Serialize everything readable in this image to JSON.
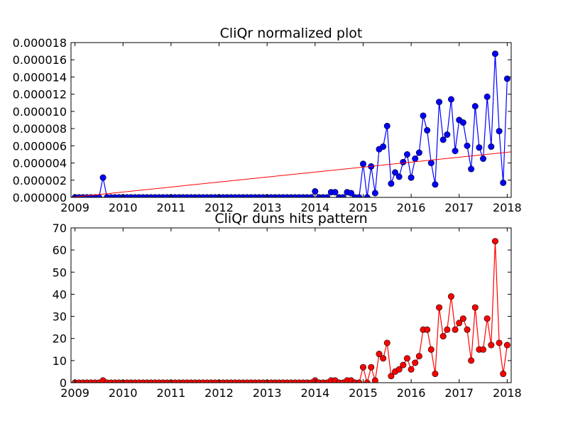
{
  "colors": {
    "normalized": "#0000ff",
    "hits": "#ff0000",
    "trend": "#ff0000"
  },
  "chart_data": [
    {
      "type": "line",
      "title": "CliQr normalized plot",
      "xlabel": "",
      "ylabel": "",
      "xlim": [
        2008.917,
        2018.083
      ],
      "ylim": [
        0,
        1.8e-05
      ],
      "x_ticks": [
        2009,
        2010,
        2011,
        2012,
        2013,
        2014,
        2015,
        2016,
        2017,
        2018
      ],
      "x_tick_labels": [
        "2009",
        "2010",
        "2011",
        "2012",
        "2013",
        "2014",
        "2015",
        "2016",
        "2017",
        "2018"
      ],
      "y_ticks": [
        0,
        2e-06,
        4e-06,
        6e-06,
        8e-06,
        1e-05,
        1.2e-05,
        1.4e-05,
        1.6e-05,
        1.8e-05
      ],
      "y_tick_labels": [
        "0.000000",
        "0.000002",
        "0.000004",
        "0.000006",
        "0.000008",
        "0.000010",
        "0.000012",
        "0.000014",
        "0.000016",
        "0.000018"
      ],
      "grid": false,
      "series": [
        {
          "marker": "circle",
          "color": "#0000ff",
          "x_start": 2009.0,
          "x_step": 0.08333,
          "values": [
            0,
            0,
            0,
            0,
            0,
            0,
            0,
            2.3e-06,
            0,
            0,
            0,
            0,
            0,
            0,
            0,
            0,
            0,
            0,
            0,
            0,
            0,
            0,
            0,
            0,
            0,
            0,
            0,
            0,
            0,
            0,
            0,
            0,
            0,
            0,
            0,
            0,
            0,
            0,
            0,
            0,
            0,
            0,
            0,
            0,
            0,
            0,
            0,
            0,
            0,
            0,
            0,
            0,
            0,
            0,
            0,
            0,
            0,
            0,
            0,
            0,
            7e-07,
            0,
            0,
            0,
            6e-07,
            6e-07,
            0,
            0,
            6e-07,
            5e-07,
            0,
            0,
            3.9e-06,
            0,
            3.6e-06,
            5e-07,
            5.6e-06,
            5.9e-06,
            8.3e-06,
            1.6e-06,
            2.9e-06,
            2.4e-06,
            4.1e-06,
            5e-06,
            2.3e-06,
            4.5e-06,
            5.2e-06,
            9.5e-06,
            7.8e-06,
            4e-06,
            1.5e-06,
            1.11e-05,
            6.7e-06,
            7.3e-06,
            1.14e-05,
            5.4e-06,
            9e-06,
            8.7e-06,
            6e-06,
            3.3e-06,
            1.06e-05,
            5.8e-06,
            4.5e-06,
            1.17e-05,
            5.9e-06,
            1.67e-05,
            7.7e-06,
            1.7e-06,
            1.38e-05
          ]
        },
        {
          "type": "trend-line",
          "color": "#ff0000",
          "x": [
            2008.917,
            2018.083
          ],
          "values": [
            0,
            5.3e-06
          ]
        }
      ]
    },
    {
      "type": "line",
      "title": "CliQr duns hits pattern",
      "xlabel": "",
      "ylabel": "",
      "xlim": [
        2008.917,
        2018.083
      ],
      "ylim": [
        0,
        70
      ],
      "x_ticks": [
        2009,
        2010,
        2011,
        2012,
        2013,
        2014,
        2015,
        2016,
        2017,
        2018
      ],
      "x_tick_labels": [
        "2009",
        "2010",
        "2011",
        "2012",
        "2013",
        "2014",
        "2015",
        "2016",
        "2017",
        "2018"
      ],
      "y_ticks": [
        0,
        10,
        20,
        30,
        40,
        50,
        60,
        70
      ],
      "y_tick_labels": [
        "0",
        "10",
        "20",
        "30",
        "40",
        "50",
        "60",
        "70"
      ],
      "grid": false,
      "series": [
        {
          "marker": "circle",
          "color": "#ff0000",
          "x_start": 2009.0,
          "x_step": 0.08333,
          "values": [
            0,
            0,
            0,
            0,
            0,
            0,
            0,
            1,
            0,
            0,
            0,
            0,
            0,
            0,
            0,
            0,
            0,
            0,
            0,
            0,
            0,
            0,
            0,
            0,
            0,
            0,
            0,
            0,
            0,
            0,
            0,
            0,
            0,
            0,
            0,
            0,
            0,
            0,
            0,
            0,
            0,
            0,
            0,
            0,
            0,
            0,
            0,
            0,
            0,
            0,
            0,
            0,
            0,
            0,
            0,
            0,
            0,
            0,
            0,
            0,
            1,
            0,
            0,
            0,
            1,
            1,
            0,
            0,
            1,
            1,
            0,
            0,
            7,
            0,
            7,
            1,
            13,
            11,
            18,
            3,
            5,
            6,
            8,
            11,
            6,
            9,
            12,
            24,
            24,
            15,
            4,
            34,
            21,
            24,
            39,
            24,
            27,
            29,
            24,
            10,
            34,
            15,
            15,
            29,
            17,
            64,
            18,
            4,
            17
          ]
        }
      ]
    }
  ]
}
